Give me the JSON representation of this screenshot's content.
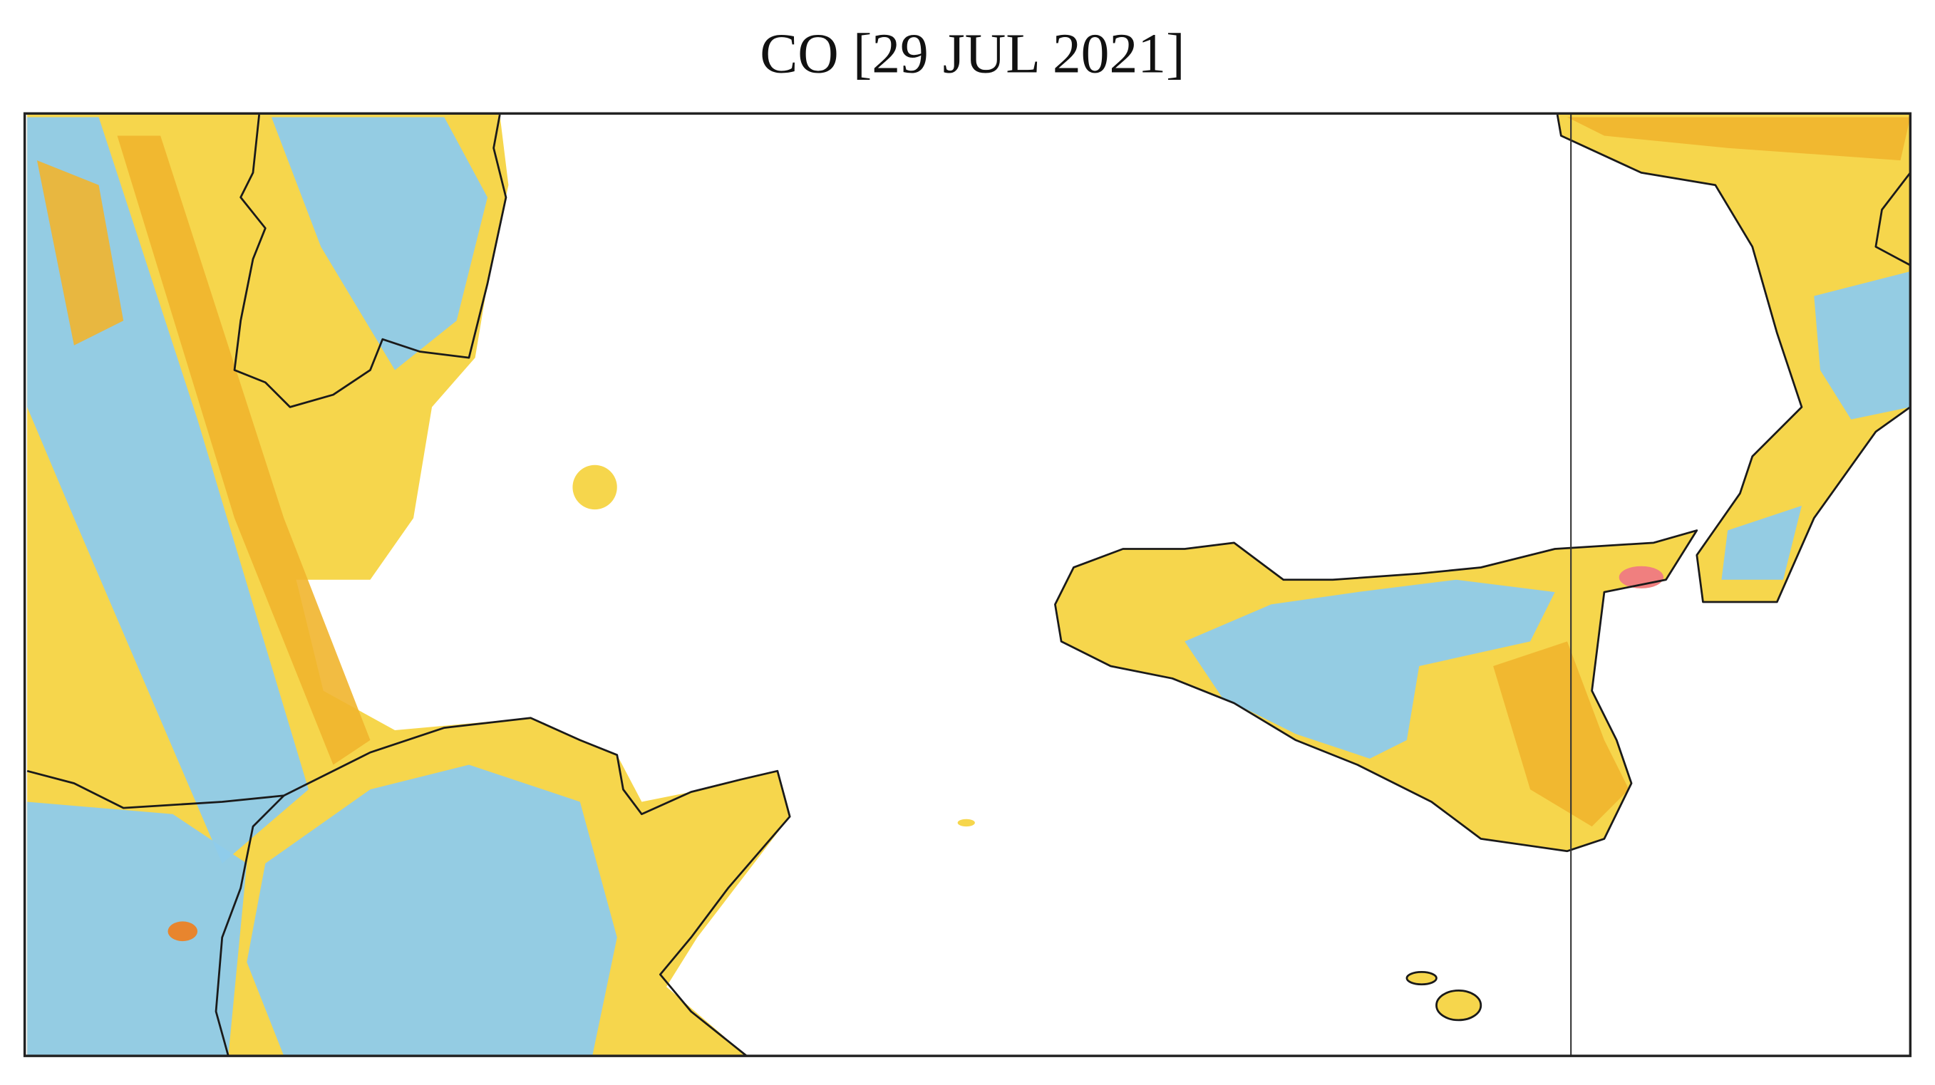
{
  "title": "CO [29 JUL 2021]"
}
